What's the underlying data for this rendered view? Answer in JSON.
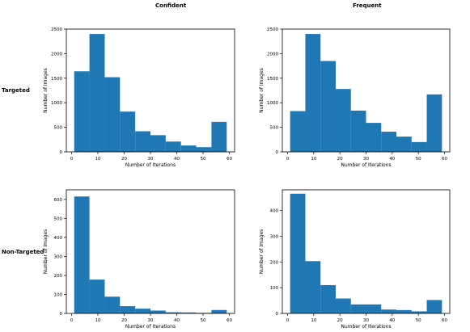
{
  "figure": {
    "column_titles": [
      "Confident",
      "Frequent"
    ],
    "row_titles": [
      "Targeted",
      "Non-Targeted"
    ],
    "bar_color": "#1f77b4"
  },
  "chart_data": [
    {
      "type": "bar",
      "panel": "Targeted / Confident",
      "bin_edges": [
        1,
        6.8,
        12.6,
        18.4,
        24.2,
        30,
        35.8,
        41.6,
        47.4,
        53.2,
        59
      ],
      "values": [
        1640,
        2400,
        1520,
        820,
        420,
        340,
        210,
        130,
        95,
        610
      ],
      "xlabel": "Number of Iterations",
      "ylabel": "Number of Images",
      "xlim": [
        -2,
        62
      ],
      "ylim": [
        0,
        2500
      ],
      "xticks": [
        0,
        10,
        20,
        30,
        40,
        50,
        60
      ],
      "yticks": [
        0,
        500,
        1000,
        1500,
        2000,
        2500
      ],
      "grid": false
    },
    {
      "type": "bar",
      "panel": "Targeted / Frequent",
      "bin_edges": [
        1,
        6.8,
        12.6,
        18.4,
        24.2,
        30,
        35.8,
        41.6,
        47.4,
        53.2,
        59
      ],
      "values": [
        830,
        2400,
        1850,
        1280,
        840,
        590,
        410,
        310,
        200,
        1170
      ],
      "xlabel": "Number of Iterations",
      "ylabel": "Number of Images",
      "xlim": [
        -2,
        62
      ],
      "ylim": [
        0,
        2500
      ],
      "xticks": [
        0,
        10,
        20,
        30,
        40,
        50,
        60
      ],
      "yticks": [
        0,
        500,
        1000,
        1500,
        2000,
        2500
      ],
      "grid": false
    },
    {
      "type": "bar",
      "panel": "Non-Targeted / Confident",
      "bin_edges": [
        1,
        6.8,
        12.6,
        18.4,
        24.2,
        30,
        35.8,
        41.6,
        47.4,
        53.2,
        59
      ],
      "values": [
        615,
        178,
        88,
        38,
        25,
        15,
        6,
        5,
        3,
        18
      ],
      "xlabel": "Number of Iterations",
      "ylabel": "Number of Images",
      "xlim": [
        -2,
        62
      ],
      "ylim": [
        0,
        650
      ],
      "xticks": [
        0,
        10,
        20,
        30,
        40,
        50,
        60
      ],
      "yticks": [
        0,
        100,
        200,
        300,
        400,
        500,
        600
      ],
      "grid": false
    },
    {
      "type": "bar",
      "panel": "Non-Targeted / Frequent",
      "bin_edges": [
        1,
        6.8,
        12.6,
        18.4,
        24.2,
        30,
        35.8,
        41.6,
        47.4,
        53.2,
        59
      ],
      "values": [
        465,
        203,
        110,
        58,
        35,
        35,
        15,
        13,
        8,
        52
      ],
      "xlabel": "Number of Iterations",
      "ylabel": "Number of Images",
      "xlim": [
        -2,
        62
      ],
      "ylim": [
        0,
        480
      ],
      "xticks": [
        0,
        10,
        20,
        30,
        40,
        50,
        60
      ],
      "yticks": [
        0,
        100,
        200,
        300,
        400
      ],
      "grid": false
    }
  ]
}
